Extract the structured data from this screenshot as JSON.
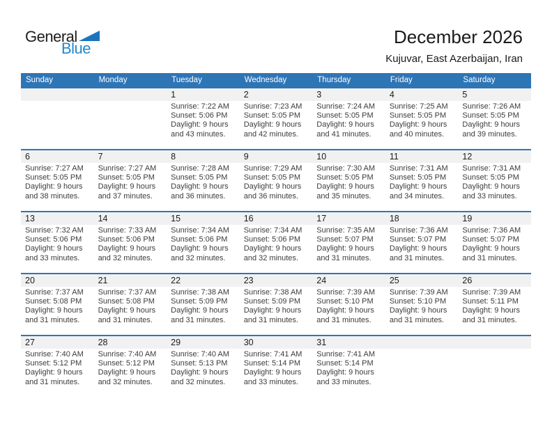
{
  "logo": {
    "general": "General",
    "blue": "Blue"
  },
  "title": "December 2026",
  "subtitle": "Kujuvar, East Azerbaijan, Iran",
  "colors": {
    "header_blue": "#2E75B6",
    "band_gray": "#F1F1F1",
    "logo_blue": "#2189CA",
    "logo_triangle_blue": "#1C75BC"
  },
  "day_headers": [
    "Sunday",
    "Monday",
    "Tuesday",
    "Wednesday",
    "Thursday",
    "Friday",
    "Saturday"
  ],
  "weeks": [
    [
      null,
      null,
      {
        "date": "1",
        "lines": [
          "Sunrise: 7:22 AM",
          "Sunset: 5:06 PM",
          "Daylight: 9 hours and 43 minutes."
        ]
      },
      {
        "date": "2",
        "lines": [
          "Sunrise: 7:23 AM",
          "Sunset: 5:05 PM",
          "Daylight: 9 hours and 42 minutes."
        ]
      },
      {
        "date": "3",
        "lines": [
          "Sunrise: 7:24 AM",
          "Sunset: 5:05 PM",
          "Daylight: 9 hours and 41 minutes."
        ]
      },
      {
        "date": "4",
        "lines": [
          "Sunrise: 7:25 AM",
          "Sunset: 5:05 PM",
          "Daylight: 9 hours and 40 minutes."
        ]
      },
      {
        "date": "5",
        "lines": [
          "Sunrise: 7:26 AM",
          "Sunset: 5:05 PM",
          "Daylight: 9 hours and 39 minutes."
        ]
      }
    ],
    [
      {
        "date": "6",
        "lines": [
          "Sunrise: 7:27 AM",
          "Sunset: 5:05 PM",
          "Daylight: 9 hours and 38 minutes."
        ]
      },
      {
        "date": "7",
        "lines": [
          "Sunrise: 7:27 AM",
          "Sunset: 5:05 PM",
          "Daylight: 9 hours and 37 minutes."
        ]
      },
      {
        "date": "8",
        "lines": [
          "Sunrise: 7:28 AM",
          "Sunset: 5:05 PM",
          "Daylight: 9 hours and 36 minutes."
        ]
      },
      {
        "date": "9",
        "lines": [
          "Sunrise: 7:29 AM",
          "Sunset: 5:05 PM",
          "Daylight: 9 hours and 36 minutes."
        ]
      },
      {
        "date": "10",
        "lines": [
          "Sunrise: 7:30 AM",
          "Sunset: 5:05 PM",
          "Daylight: 9 hours and 35 minutes."
        ]
      },
      {
        "date": "11",
        "lines": [
          "Sunrise: 7:31 AM",
          "Sunset: 5:05 PM",
          "Daylight: 9 hours and 34 minutes."
        ]
      },
      {
        "date": "12",
        "lines": [
          "Sunrise: 7:31 AM",
          "Sunset: 5:05 PM",
          "Daylight: 9 hours and 33 minutes."
        ]
      }
    ],
    [
      {
        "date": "13",
        "lines": [
          "Sunrise: 7:32 AM",
          "Sunset: 5:06 PM",
          "Daylight: 9 hours and 33 minutes."
        ]
      },
      {
        "date": "14",
        "lines": [
          "Sunrise: 7:33 AM",
          "Sunset: 5:06 PM",
          "Daylight: 9 hours and 32 minutes."
        ]
      },
      {
        "date": "15",
        "lines": [
          "Sunrise: 7:34 AM",
          "Sunset: 5:06 PM",
          "Daylight: 9 hours and 32 minutes."
        ]
      },
      {
        "date": "16",
        "lines": [
          "Sunrise: 7:34 AM",
          "Sunset: 5:06 PM",
          "Daylight: 9 hours and 32 minutes."
        ]
      },
      {
        "date": "17",
        "lines": [
          "Sunrise: 7:35 AM",
          "Sunset: 5:07 PM",
          "Daylight: 9 hours and 31 minutes."
        ]
      },
      {
        "date": "18",
        "lines": [
          "Sunrise: 7:36 AM",
          "Sunset: 5:07 PM",
          "Daylight: 9 hours and 31 minutes."
        ]
      },
      {
        "date": "19",
        "lines": [
          "Sunrise: 7:36 AM",
          "Sunset: 5:07 PM",
          "Daylight: 9 hours and 31 minutes."
        ]
      }
    ],
    [
      {
        "date": "20",
        "lines": [
          "Sunrise: 7:37 AM",
          "Sunset: 5:08 PM",
          "Daylight: 9 hours and 31 minutes."
        ]
      },
      {
        "date": "21",
        "lines": [
          "Sunrise: 7:37 AM",
          "Sunset: 5:08 PM",
          "Daylight: 9 hours and 31 minutes."
        ]
      },
      {
        "date": "22",
        "lines": [
          "Sunrise: 7:38 AM",
          "Sunset: 5:09 PM",
          "Daylight: 9 hours and 31 minutes."
        ]
      },
      {
        "date": "23",
        "lines": [
          "Sunrise: 7:38 AM",
          "Sunset: 5:09 PM",
          "Daylight: 9 hours and 31 minutes."
        ]
      },
      {
        "date": "24",
        "lines": [
          "Sunrise: 7:39 AM",
          "Sunset: 5:10 PM",
          "Daylight: 9 hours and 31 minutes."
        ]
      },
      {
        "date": "25",
        "lines": [
          "Sunrise: 7:39 AM",
          "Sunset: 5:10 PM",
          "Daylight: 9 hours and 31 minutes."
        ]
      },
      {
        "date": "26",
        "lines": [
          "Sunrise: 7:39 AM",
          "Sunset: 5:11 PM",
          "Daylight: 9 hours and 31 minutes."
        ]
      }
    ],
    [
      {
        "date": "27",
        "lines": [
          "Sunrise: 7:40 AM",
          "Sunset: 5:12 PM",
          "Daylight: 9 hours and 31 minutes."
        ]
      },
      {
        "date": "28",
        "lines": [
          "Sunrise: 7:40 AM",
          "Sunset: 5:12 PM",
          "Daylight: 9 hours and 32 minutes."
        ]
      },
      {
        "date": "29",
        "lines": [
          "Sunrise: 7:40 AM",
          "Sunset: 5:13 PM",
          "Daylight: 9 hours and 32 minutes."
        ]
      },
      {
        "date": "30",
        "lines": [
          "Sunrise: 7:41 AM",
          "Sunset: 5:14 PM",
          "Daylight: 9 hours and 33 minutes."
        ]
      },
      {
        "date": "31",
        "lines": [
          "Sunrise: 7:41 AM",
          "Sunset: 5:14 PM",
          "Daylight: 9 hours and 33 minutes."
        ]
      },
      null,
      null
    ]
  ]
}
